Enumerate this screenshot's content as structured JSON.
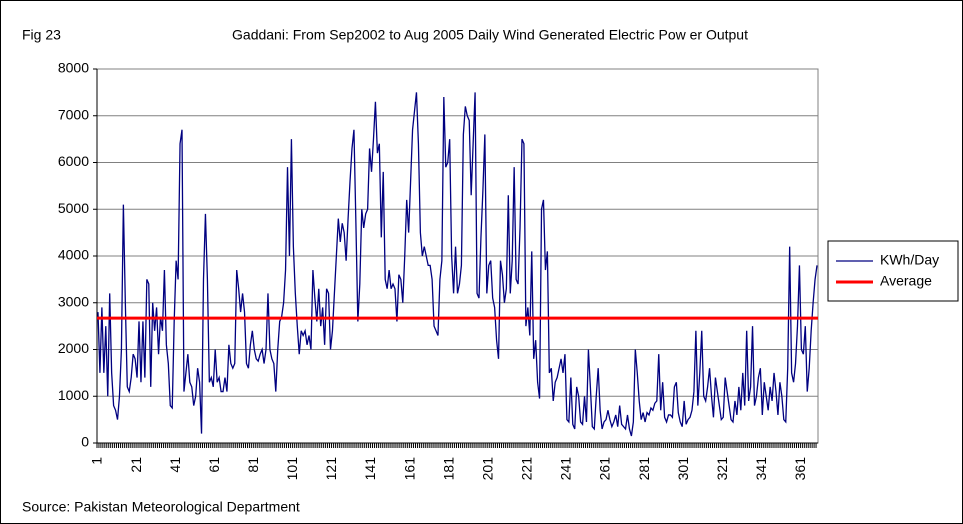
{
  "chart_data": {
    "type": "line",
    "figure_label": "Fig 23",
    "title": "Gaddani: From Sep2002 to Aug 2005 Daily Wind Generated Electric Pow er Output",
    "source": "Source: Pakistan Meteorological Department",
    "ylim": [
      0,
      8000
    ],
    "yticks": [
      0,
      1000,
      2000,
      3000,
      4000,
      5000,
      6000,
      7000,
      8000
    ],
    "grid": true,
    "legend": "right",
    "categories": [
      "1",
      null,
      null,
      null,
      null,
      null,
      null,
      null,
      null,
      null,
      null,
      null,
      null,
      null,
      null,
      null,
      null,
      null,
      null,
      null,
      "21",
      null,
      null,
      null,
      null,
      null,
      null,
      null,
      null,
      null,
      null,
      null,
      null,
      null,
      null,
      null,
      null,
      null,
      null,
      null,
      "41",
      null,
      null,
      null,
      null,
      null,
      null,
      null,
      null,
      null,
      null,
      null,
      null,
      null,
      null,
      null,
      null,
      null,
      null,
      null,
      "61",
      null,
      null,
      null,
      null,
      null,
      null,
      null,
      null,
      null,
      null,
      null,
      null,
      null,
      null,
      null,
      null,
      null,
      null,
      null,
      "81",
      null,
      null,
      null,
      null,
      null,
      null,
      null,
      null,
      null,
      null,
      null,
      null,
      null,
      null,
      null,
      null,
      null,
      null,
      null,
      "101",
      null,
      null,
      null,
      null,
      null,
      null,
      null,
      null,
      null,
      null,
      null,
      null,
      null,
      null,
      null,
      null,
      null,
      null,
      null,
      "121",
      null,
      null,
      null,
      null,
      null,
      null,
      null,
      null,
      null,
      null,
      null,
      null,
      null,
      null,
      null,
      null,
      null,
      null,
      null,
      "141",
      null,
      null,
      null,
      null,
      null,
      null,
      null,
      null,
      null,
      null,
      null,
      null,
      null,
      null,
      null,
      null,
      null,
      null,
      null,
      "161",
      null,
      null,
      null,
      null,
      null,
      null,
      null,
      null,
      null,
      null,
      null,
      null,
      null,
      null,
      null,
      null,
      null,
      null,
      null,
      "181",
      null,
      null,
      null,
      null,
      null,
      null,
      null,
      null,
      null,
      null,
      null,
      null,
      null,
      null,
      null,
      null,
      null,
      null,
      null,
      "201",
      null,
      null,
      null,
      null,
      null,
      null,
      null,
      null,
      null,
      null,
      null,
      null,
      null,
      null,
      null,
      null,
      null,
      null,
      null,
      "221",
      null,
      null,
      null,
      null,
      null,
      null,
      null,
      null,
      null,
      null,
      null,
      null,
      null,
      null,
      null,
      null,
      null,
      null,
      null,
      "241",
      null,
      null,
      null,
      null,
      null,
      null,
      null,
      null,
      null,
      null,
      null,
      null,
      null,
      null,
      null,
      null,
      null,
      null,
      null,
      "261",
      null,
      null,
      null,
      null,
      null,
      null,
      null,
      null,
      null,
      null,
      null,
      null,
      null,
      null,
      null,
      null,
      null,
      null,
      null,
      "281",
      null,
      null,
      null,
      null,
      null,
      null,
      null,
      null,
      null,
      null,
      null,
      null,
      null,
      null,
      null,
      null,
      null,
      null,
      null,
      "301",
      null,
      null,
      null,
      null,
      null,
      null,
      null,
      null,
      null,
      null,
      null,
      null,
      null,
      null,
      null,
      null,
      null,
      null,
      null,
      "321",
      null,
      null,
      null,
      null,
      null,
      null,
      null,
      null,
      null,
      null,
      null,
      null,
      null,
      null,
      null,
      null,
      null,
      null,
      null,
      "341",
      null,
      null,
      null,
      null,
      null,
      null,
      null,
      null,
      null,
      null,
      null,
      null,
      null,
      null,
      null,
      null,
      null,
      null,
      null,
      "361",
      null,
      null,
      null,
      null,
      null,
      null,
      null,
      null
    ],
    "series": [
      {
        "name": "KWh/Day",
        "color": "#000080",
        "values": [
          2800,
          1500,
          2900,
          1500,
          2500,
          1000,
          3200,
          1500,
          800,
          700,
          500,
          1000,
          2000,
          5100,
          3000,
          1200,
          1100,
          1400,
          1900,
          1800,
          1400,
          2600,
          1300,
          2600,
          1400,
          3500,
          3400,
          1200,
          3000,
          2400,
          2900,
          1900,
          2700,
          2400,
          3700,
          2100,
          1700,
          800,
          750,
          2600,
          3900,
          3500,
          6400,
          6700,
          1100,
          1500,
          1900,
          1300,
          1200,
          800,
          1000,
          1600,
          1300,
          200,
          3500,
          4900,
          3500,
          1300,
          1400,
          1200,
          2000,
          1300,
          1400,
          1100,
          1100,
          1400,
          1100,
          2100,
          1700,
          1600,
          1700,
          3700,
          3300,
          2800,
          3200,
          2800,
          1700,
          1600,
          2100,
          2400,
          2000,
          1800,
          1750,
          1900,
          2000,
          1700,
          2000,
          3200,
          2000,
          1800,
          1700,
          1100,
          2000,
          2600,
          2700,
          3000,
          3700,
          5900,
          4000,
          6500,
          4200,
          3200,
          2500,
          1900,
          2400,
          2300,
          2400,
          2100,
          2300,
          2000,
          3700,
          3100,
          2600,
          3300,
          2500,
          2900,
          2100,
          3300,
          3200,
          2000,
          2400,
          3200,
          4000,
          4800,
          4300,
          4700,
          4500,
          3900,
          4800,
          5600,
          6300,
          6700,
          4700,
          2600,
          3400,
          5000,
          4600,
          4900,
          5000,
          6300,
          5800,
          6500,
          7300,
          6200,
          6400,
          4400,
          5800,
          3500,
          3300,
          3700,
          3300,
          3400,
          3300,
          2600,
          3600,
          3500,
          3000,
          4000,
          5200,
          4500,
          5600,
          6700,
          7100,
          7500,
          6400,
          4500,
          4000,
          4200,
          4000,
          3800,
          3800,
          3500,
          2500,
          2400,
          2300,
          3500,
          3900,
          7400,
          5900,
          6000,
          6500,
          4000,
          3200,
          4200,
          3200,
          3400,
          3800,
          6600,
          7200,
          7000,
          6900,
          5300,
          6400,
          7500,
          3200,
          3100,
          4400,
          5400,
          6600,
          3200,
          3800,
          3900,
          3100,
          2900,
          2200,
          1800,
          3900,
          3600,
          3000,
          3300,
          5300,
          3200,
          3900,
          5900,
          3500,
          3400,
          4600,
          6500,
          6400,
          2500,
          2900,
          2300,
          4100,
          1800,
          2200,
          1300,
          950,
          5000,
          5200,
          3700,
          4100,
          1500,
          1600,
          900,
          1300,
          1400,
          1600,
          1800,
          1500,
          1900,
          500,
          450,
          1400,
          400,
          300,
          1200,
          1000,
          450,
          400,
          1000,
          450,
          2000,
          1200,
          350,
          300,
          1000,
          1600,
          700,
          300,
          450,
          500,
          700,
          500,
          350,
          450,
          600,
          350,
          800,
          400,
          350,
          300,
          600,
          300,
          150,
          450,
          2000,
          1500,
          900,
          500,
          650,
          450,
          650,
          600,
          750,
          700,
          850,
          900,
          1900,
          700,
          1300,
          550,
          450,
          600,
          600,
          550,
          1200,
          1300,
          650,
          450,
          350,
          900,
          400,
          500,
          550,
          700,
          1100,
          2400,
          800,
          1500,
          2400,
          1000,
          900,
          1200,
          1600,
          1000,
          550,
          1400,
          1100,
          800,
          500,
          550,
          1400,
          1100,
          800,
          500,
          450,
          900,
          600,
          1200,
          700,
          1500,
          800,
          2400,
          900,
          1200,
          2500,
          800,
          1000,
          1400,
          1600,
          600,
          1300,
          1000,
          700,
          1200,
          900,
          1500,
          1100,
          600,
          1300,
          1000,
          500,
          450,
          1600,
          4200,
          1500,
          1300,
          1700,
          2500,
          3800,
          2000,
          1900,
          2500,
          1100,
          1600,
          2400,
          3000,
          3500,
          3800
        ]
      }
    ],
    "average": {
      "name": "Average",
      "color": "#ff0000",
      "value": 2670
    }
  }
}
